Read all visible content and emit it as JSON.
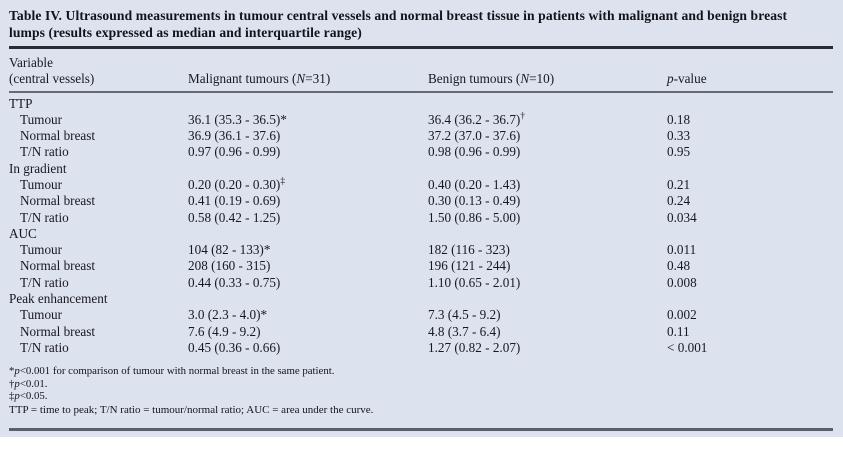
{
  "title": "Table IV. Ultrasound measurements in tumour central vessels and normal breast tissue in patients with malignant and benign breast lumps (results expressed as median and interquartile range)",
  "colors": {
    "panel_bg": "#dce2ee",
    "text": "#181821",
    "rule_dark": "#272c34",
    "rule_gray": "#646b77"
  },
  "header": {
    "variable_line1": "Variable",
    "variable_line2": "(central vessels)",
    "malignant": {
      "pre": "Malignant tumours (",
      "n": "N",
      "post": "=31)"
    },
    "benign": {
      "pre": "Benign tumours (",
      "n": "N",
      "post": "=10)"
    },
    "pvalue": {
      "p": "p",
      "post": "-value"
    }
  },
  "sections": [
    {
      "label": "TTP",
      "rows": [
        {
          "label": "Tumour",
          "malignant": "36.1 (35.3 - 36.5)*",
          "benign": "36.4 (36.2 - 36.7)",
          "benign_sup": "†",
          "p": "0.18"
        },
        {
          "label": "Normal breast",
          "malignant": "36.9 (36.1 - 37.6)",
          "benign": "37.2 (37.0 - 37.6)",
          "p": "0.33"
        },
        {
          "label": "T/N ratio",
          "malignant": "0.97 (0.96 - 0.99)",
          "benign": "0.98 (0.96 - 0.99)",
          "p": "0.95"
        }
      ]
    },
    {
      "label": "In gradient",
      "rows": [
        {
          "label": "Tumour",
          "malignant": "0.20 (0.20 - 0.30)",
          "malignant_sup": "‡",
          "benign": "0.40 (0.20 - 1.43)",
          "p": "0.21"
        },
        {
          "label": "Normal breast",
          "malignant": "0.41 (0.19 - 0.69)",
          "benign": "0.30 (0.13 - 0.49)",
          "p": "0.24"
        },
        {
          "label": "T/N ratio",
          "malignant": "0.58 (0.42 - 1.25)",
          "benign": "1.50 (0.86 - 5.00)",
          "p": "0.034"
        }
      ]
    },
    {
      "label": "AUC",
      "rows": [
        {
          "label": "Tumour",
          "malignant": "104 (82 - 133)*",
          "benign": "182 (116 - 323)",
          "p": "0.011"
        },
        {
          "label": "Normal breast",
          "malignant": "208 (160 - 315)",
          "benign": "196 (121 - 244)",
          "p": "0.48"
        },
        {
          "label": "T/N ratio",
          "malignant": "0.44 (0.33 - 0.75)",
          "benign": "1.10 (0.65 - 2.01)",
          "p": "0.008"
        }
      ]
    },
    {
      "label": "Peak enhancement",
      "rows": [
        {
          "label": "Tumour",
          "malignant": "3.0 (2.3 - 4.0)*",
          "benign": "7.3 (4.5 - 9.2)",
          "p": "0.002"
        },
        {
          "label": "Normal breast",
          "malignant": "7.6 (4.9 - 9.2)",
          "benign": "4.8 (3.7 - 6.4)",
          "p": "0.11"
        },
        {
          "label": "T/N ratio",
          "malignant": "0.45 (0.36 - 0.66)",
          "benign": "1.27 (0.82 - 2.07)",
          "p": "< 0.001"
        }
      ]
    }
  ],
  "footnotes": [
    {
      "sym": "*",
      "p": "p",
      "text": "<0.001 for comparison of tumour with normal breast in the same patient."
    },
    {
      "sym": "†",
      "p": "p",
      "text": "<0.01."
    },
    {
      "sym": "‡",
      "p": "p",
      "text": "<0.05."
    },
    {
      "text": "TTP = time to peak; T/N ratio = tumour/normal ratio; AUC = area under the curve."
    }
  ]
}
